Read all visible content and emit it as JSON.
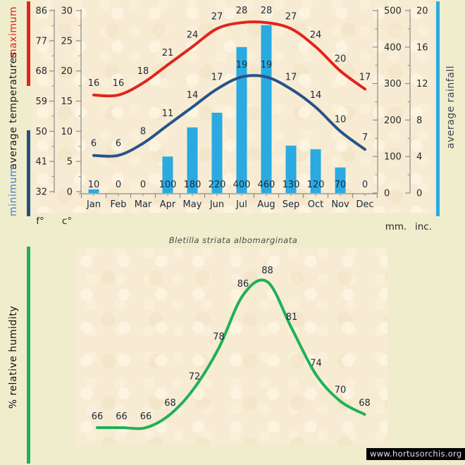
{
  "page": {
    "background_color": "#f0edcd",
    "panel_texture_color": "#f7ecd3",
    "subtitle": "Bletilla striata albomarginata",
    "watermark": "www.hortusorchis.org"
  },
  "temperature_chart": {
    "legend": {
      "maximum_label": "maximum",
      "average_label": "average temperatures",
      "minimum_label": "minimum",
      "rainfall_label": "average rainfall"
    },
    "axis_units": {
      "fahrenheit": "f°",
      "celsius": "c°",
      "millimeters": "mm.",
      "inches": "inc."
    }
  },
  "humidity_chart": {
    "legend_label": "% relative humidity"
  },
  "chart_data": [
    {
      "type": "line+bar",
      "title": "average temperatures and average rainfall by month",
      "categories": [
        "Jan",
        "Feb",
        "Mar",
        "Apr",
        "May",
        "Jun",
        "Jul",
        "Aug",
        "Sep",
        "Oct",
        "Nov",
        "Dec"
      ],
      "series": [
        {
          "name": "maximum temperature",
          "kind": "line",
          "color": "#e0251c",
          "values": [
            16,
            16,
            18,
            21,
            24,
            27,
            28,
            28,
            27,
            24,
            20,
            17
          ]
        },
        {
          "name": "minimum temperature",
          "kind": "line",
          "color": "#27548a",
          "values": [
            6,
            6,
            8,
            11,
            14,
            17,
            19,
            19,
            17,
            14,
            10,
            7
          ]
        },
        {
          "name": "average rainfall",
          "kind": "bar",
          "color": "#2aaae1",
          "values": [
            10,
            0,
            0,
            100,
            180,
            220,
            400,
            460,
            130,
            120,
            70,
            0
          ]
        }
      ],
      "axes": {
        "fahrenheit_ticks": [
          86,
          77,
          68,
          59,
          50,
          41,
          32
        ],
        "celsius_ticks": [
          30,
          25,
          20,
          15,
          10,
          5,
          0
        ],
        "rain_mm_ticks": [
          500,
          400,
          300,
          200,
          100,
          0
        ],
        "rain_inch_ticks": [
          20,
          16,
          12,
          8,
          4,
          0
        ],
        "celsius_range": [
          0,
          30
        ],
        "rain_range_mm": [
          0,
          500
        ],
        "grid": false
      }
    },
    {
      "type": "line",
      "title": "% relative humidity by month",
      "categories": [
        "Jan",
        "Feb",
        "Mar",
        "Apr",
        "May",
        "Jun",
        "Jul",
        "Aug",
        "Sep",
        "Oct",
        "Nov",
        "Dec"
      ],
      "values": [
        66,
        66,
        66,
        68,
        72,
        78,
        86,
        88,
        81,
        74,
        70,
        68
      ],
      "color": "#21b059",
      "value_range": [
        66,
        88
      ]
    }
  ]
}
